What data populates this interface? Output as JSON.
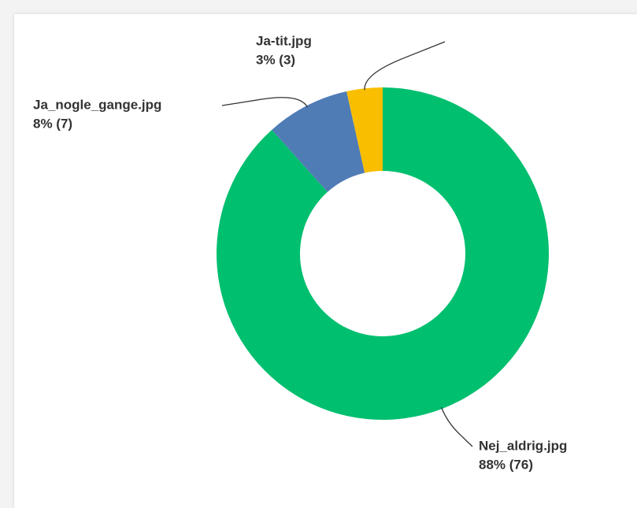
{
  "chart_data": {
    "type": "pie",
    "categories": [
      "Nej_aldrig.jpg",
      "Ja_nogle_gange.jpg",
      "Ja-tit.jpg"
    ],
    "values": [
      76,
      7,
      3
    ],
    "value_labels": [
      "88% (76)",
      "8% (7)",
      "3% (3)"
    ],
    "colors": [
      "#00bf6f",
      "#507cb6",
      "#f9be00"
    ],
    "donut": true
  }
}
